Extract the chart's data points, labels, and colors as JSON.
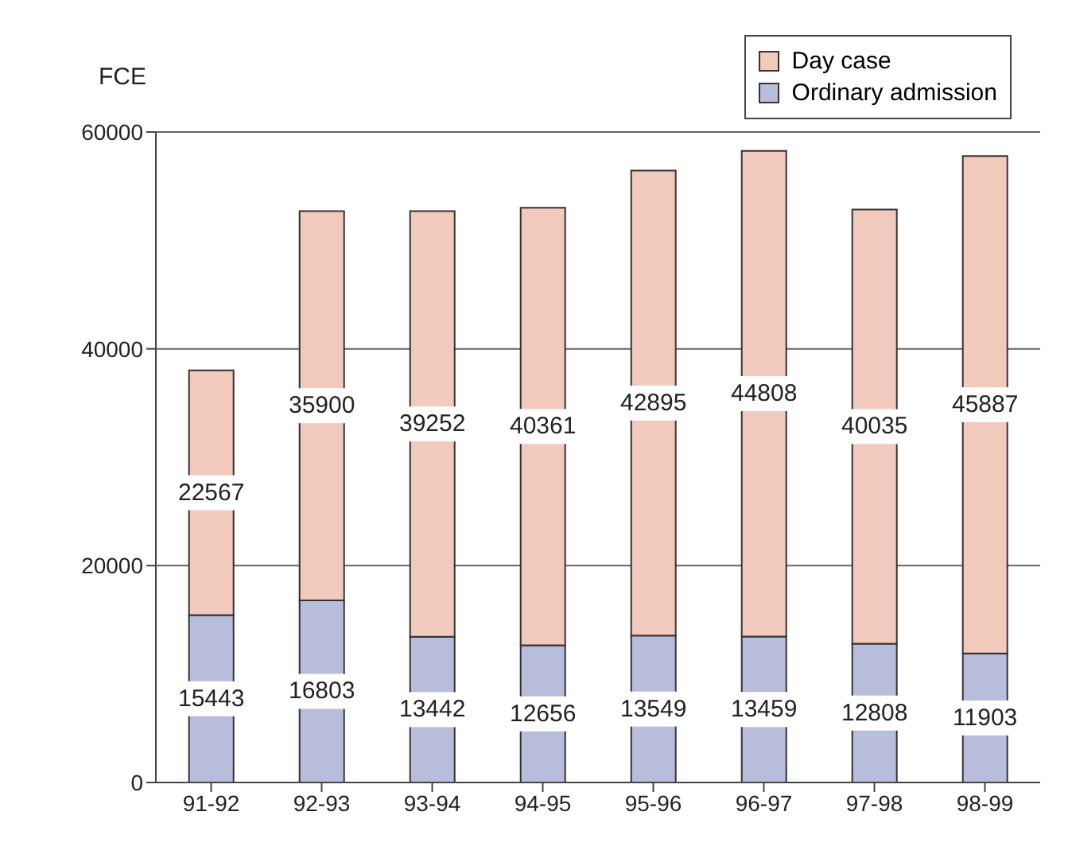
{
  "chart_data": {
    "type": "bar",
    "stacked": true,
    "ylabel": "FCE",
    "categories": [
      "91-92",
      "92-93",
      "93-94",
      "94-95",
      "95-96",
      "96-97",
      "97-98",
      "98-99"
    ],
    "series": [
      {
        "name": "Ordinary admission",
        "color": "#b9bddc",
        "values": [
          15443,
          16803,
          13442,
          12656,
          13549,
          13459,
          12808,
          11903
        ]
      },
      {
        "name": "Day case",
        "color": "#f2c9bd",
        "values": [
          22567,
          35900,
          39252,
          40361,
          42895,
          44808,
          40035,
          45887
        ]
      }
    ],
    "ylim": [
      0,
      60000
    ],
    "yticks": [
      0,
      20000,
      40000,
      60000
    ],
    "grid": "y",
    "legend": "top right",
    "data_labels": true
  }
}
